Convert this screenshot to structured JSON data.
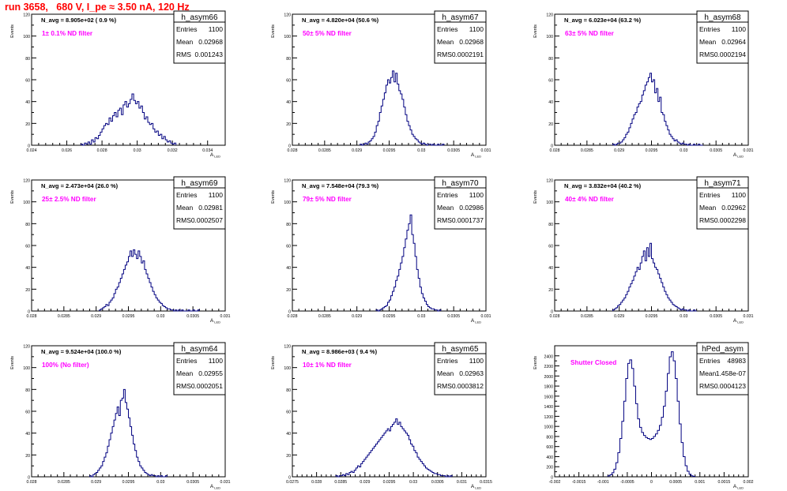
{
  "run_title": "run 3658,   680 V, I_pe ≈ 3.50 nA, 120 Hz",
  "colors": {
    "title": "#ff0000",
    "filter_text": "#ff00ff",
    "histogram": "#000080",
    "axis": "#000000"
  },
  "chart_data": [
    {
      "type": "histogram",
      "name": "h_asym66",
      "stats": {
        "entries_label": "Entries",
        "entries": "1100",
        "mean_label": "Mean",
        "mean": "0.02968",
        "rms_label": "RMS",
        "rms": "0.001243"
      },
      "navg": "N_avg = 8.905e+02 ( 0.9 %)",
      "filter": "1± 0.1% ND filter",
      "xlabel": "A_LED",
      "ylabel": "Events",
      "xlim": [
        0.024,
        0.035
      ],
      "ylim": [
        0,
        120
      ],
      "xticks": [
        0.024,
        0.026,
        0.028,
        0.03,
        0.032,
        0.034
      ],
      "xticklabels": [
        "0.024",
        "0.026",
        "0.028",
        "0.03",
        "0.032",
        "0.034"
      ],
      "yticks": [
        0,
        20,
        40,
        60,
        80,
        100,
        120
      ],
      "yticklabels": [
        "0",
        "20",
        "40",
        "60",
        "80",
        "100",
        "120"
      ],
      "bin_edges": [
        0.0268,
        0.0322
      ],
      "counts": [
        1,
        0,
        2,
        1,
        3,
        1,
        5,
        3,
        7,
        6,
        9,
        12,
        15,
        18,
        20,
        19,
        25,
        22,
        27,
        30,
        26,
        32,
        34,
        28,
        37,
        40,
        35,
        38,
        42,
        47,
        41,
        38,
        40,
        34,
        36,
        30,
        24,
        26,
        21,
        19,
        20,
        15,
        12,
        13,
        9,
        10,
        6,
        8,
        5,
        3,
        4,
        2,
        1,
        2
      ]
    },
    {
      "type": "histogram",
      "name": "h_asym67",
      "stats": {
        "entries_label": "Entries",
        "entries": "1100",
        "mean_label": "Mean",
        "mean": "0.02968",
        "rms_label": "RMS",
        "rms": "0.0002191"
      },
      "navg": "N_avg = 4.820e+04 (50.6 %)",
      "filter": "50± 5% ND filter",
      "xlabel": "A_LED",
      "ylabel": "Events",
      "xlim": [
        0.028,
        0.031
      ],
      "ylim": [
        0,
        120
      ],
      "xticks": [
        0.028,
        0.0285,
        0.029,
        0.0295,
        0.03,
        0.0305,
        0.031
      ],
      "xticklabels": [
        "0.028",
        "0.0285",
        "0.029",
        "0.0295",
        "0.03",
        "0.0305",
        "0.031"
      ],
      "yticks": [
        0,
        20,
        40,
        60,
        80,
        100,
        120
      ],
      "yticklabels": [
        "0",
        "20",
        "40",
        "60",
        "80",
        "100",
        "120"
      ],
      "bin_edges": [
        0.02905,
        0.03035
      ],
      "counts": [
        1,
        0,
        1,
        2,
        1,
        3,
        4,
        6,
        8,
        12,
        18,
        22,
        30,
        36,
        42,
        48,
        55,
        60,
        57,
        62,
        68,
        58,
        66,
        56,
        50,
        47,
        42,
        35,
        28,
        22,
        18,
        14,
        10,
        8,
        6,
        5,
        3,
        2,
        1,
        2,
        1,
        0,
        1,
        1,
        0,
        1,
        0,
        0,
        1,
        0,
        0,
        1
      ]
    },
    {
      "type": "histogram",
      "name": "h_asym68",
      "stats": {
        "entries_label": "Entries",
        "entries": "1100",
        "mean_label": "Mean",
        "mean": "0.02964",
        "rms_label": "RMS",
        "rms": "0.0002194"
      },
      "navg": "N_avg = 6.023e+04 (63.2 %)",
      "filter": "63± 5% ND filter",
      "xlabel": "A_LED",
      "ylabel": "Events",
      "xlim": [
        0.028,
        0.031
      ],
      "ylim": [
        0,
        120
      ],
      "xticks": [
        0.028,
        0.0285,
        0.029,
        0.0295,
        0.03,
        0.0305,
        0.031
      ],
      "xticklabels": [
        "0.028",
        "0.0285",
        "0.029",
        "0.0295",
        "0.03",
        "0.0305",
        "0.031"
      ],
      "yticks": [
        0,
        20,
        40,
        60,
        80,
        100,
        120
      ],
      "yticklabels": [
        "0",
        "20",
        "40",
        "60",
        "80",
        "100",
        "120"
      ],
      "bin_edges": [
        0.0289,
        0.0303
      ],
      "counts": [
        1,
        0,
        1,
        2,
        2,
        3,
        5,
        7,
        10,
        12,
        16,
        20,
        24,
        28,
        30,
        35,
        38,
        40,
        46,
        50,
        55,
        58,
        62,
        66,
        58,
        60,
        48,
        52,
        40,
        44,
        30,
        28,
        22,
        18,
        14,
        10,
        8,
        6,
        4,
        5,
        3,
        2,
        1,
        2,
        1,
        1,
        0,
        1,
        0,
        0,
        1,
        0,
        0,
        1,
        0,
        0
      ]
    },
    {
      "type": "histogram",
      "name": "h_asym69",
      "stats": {
        "entries_label": "Entries",
        "entries": "1100",
        "mean_label": "Mean",
        "mean": "0.02981",
        "rms_label": "RMS",
        "rms": "0.0002507"
      },
      "navg": "N_avg = 2.473e+04 (26.0 %)",
      "filter": "25± 2.5% ND filter",
      "xlabel": "A_LED",
      "ylabel": "Events",
      "xlim": [
        0.028,
        0.031
      ],
      "ylim": [
        0,
        120
      ],
      "xticks": [
        0.028,
        0.0285,
        0.029,
        0.0295,
        0.03,
        0.0305,
        0.031
      ],
      "xticklabels": [
        "0.028",
        "0.0285",
        "0.029",
        "0.0295",
        "0.03",
        "0.0305",
        "0.031"
      ],
      "yticks": [
        0,
        20,
        40,
        60,
        80,
        100,
        120
      ],
      "yticklabels": [
        "0",
        "20",
        "40",
        "60",
        "80",
        "100",
        "120"
      ],
      "bin_edges": [
        0.02905,
        0.0306
      ],
      "counts": [
        1,
        2,
        3,
        4,
        6,
        5,
        8,
        10,
        12,
        16,
        20,
        22,
        26,
        30,
        34,
        38,
        42,
        45,
        50,
        55,
        50,
        56,
        52,
        48,
        55,
        50,
        44,
        46,
        38,
        34,
        30,
        26,
        22,
        18,
        15,
        12,
        10,
        8,
        7,
        5,
        4,
        3,
        2,
        2,
        1,
        1,
        0,
        1,
        0,
        1,
        0,
        1,
        0,
        0,
        0,
        1,
        0,
        0,
        1,
        0,
        0,
        1
      ]
    },
    {
      "type": "histogram",
      "name": "h_asym70",
      "stats": {
        "entries_label": "Entries",
        "entries": "1100",
        "mean_label": "Mean",
        "mean": "0.02986",
        "rms_label": "RMS",
        "rms": "0.0001737"
      },
      "navg": "N_avg = 7.548e+04 (79.3 %)",
      "filter": "79± 5% ND filter",
      "xlabel": "A_LED",
      "ylabel": "Events",
      "xlim": [
        0.028,
        0.031
      ],
      "ylim": [
        0,
        120
      ],
      "xticks": [
        0.028,
        0.0285,
        0.029,
        0.0295,
        0.03,
        0.0305,
        0.031
      ],
      "xticklabels": [
        "0.028",
        "0.0285",
        "0.029",
        "0.0295",
        "0.03",
        "0.0305",
        "0.031"
      ],
      "yticks": [
        0,
        20,
        40,
        60,
        80,
        100,
        120
      ],
      "yticklabels": [
        "0",
        "20",
        "40",
        "60",
        "80",
        "100",
        "120"
      ],
      "bin_edges": [
        0.0293,
        0.0303
      ],
      "counts": [
        1,
        0,
        1,
        2,
        3,
        4,
        5,
        8,
        10,
        14,
        18,
        22,
        28,
        32,
        38,
        44,
        50,
        58,
        66,
        74,
        80,
        88,
        70,
        62,
        50,
        38,
        30,
        22,
        16,
        12,
        9,
        6,
        4,
        3,
        2,
        2,
        1,
        1,
        0,
        1
      ]
    },
    {
      "type": "histogram",
      "name": "h_asym71",
      "stats": {
        "entries_label": "Entries",
        "entries": "1100",
        "mean_label": "Mean",
        "mean": "0.02962",
        "rms_label": "RMS",
        "rms": "0.0002298"
      },
      "navg": "N_avg = 3.832e+04 (40.2 %)",
      "filter": "40± 4% ND filter",
      "xlabel": "A_LED",
      "ylabel": "Events",
      "xlim": [
        0.028,
        0.031
      ],
      "ylim": [
        0,
        120
      ],
      "xticks": [
        0.028,
        0.0285,
        0.029,
        0.0295,
        0.03,
        0.0305,
        0.031
      ],
      "xticklabels": [
        "0.028",
        "0.0285",
        "0.029",
        "0.0295",
        "0.03",
        "0.0305",
        "0.031"
      ],
      "yticks": [
        0,
        20,
        40,
        60,
        80,
        100,
        120
      ],
      "yticklabels": [
        "0",
        "20",
        "40",
        "60",
        "80",
        "100",
        "120"
      ],
      "bin_edges": [
        0.0289,
        0.0302
      ],
      "counts": [
        1,
        2,
        3,
        5,
        6,
        8,
        10,
        12,
        15,
        18,
        22,
        25,
        28,
        32,
        36,
        40,
        38,
        44,
        50,
        55,
        46,
        58,
        50,
        62,
        48,
        44,
        40,
        38,
        34,
        30,
        26,
        22,
        18,
        15,
        12,
        10,
        8,
        6,
        5,
        4,
        3,
        2,
        1,
        2,
        1,
        1,
        0,
        1,
        0,
        0,
        1,
        0
      ]
    },
    {
      "type": "histogram",
      "name": "h_asym64",
      "stats": {
        "entries_label": "Entries",
        "entries": "1100",
        "mean_label": "Mean",
        "mean": "0.02955",
        "rms_label": "RMS",
        "rms": "0.0002051"
      },
      "navg": "N_avg = 9.524e+04 (100.0 %)",
      "filter": "100% (No filter)",
      "xlabel": "A_LED",
      "ylabel": "Events",
      "xlim": [
        0.028,
        0.031
      ],
      "ylim": [
        0,
        120
      ],
      "xticks": [
        0.028,
        0.0285,
        0.029,
        0.0295,
        0.03,
        0.0305,
        0.031
      ],
      "xticklabels": [
        "0.028",
        "0.0285",
        "0.029",
        "0.0295",
        "0.03",
        "0.0305",
        "0.031"
      ],
      "yticks": [
        0,
        20,
        40,
        60,
        80,
        100,
        120
      ],
      "yticklabels": [
        "0",
        "20",
        "40",
        "60",
        "80",
        "100",
        "120"
      ],
      "bin_edges": [
        0.0289,
        0.0301
      ],
      "counts": [
        1,
        0,
        2,
        3,
        4,
        6,
        8,
        10,
        14,
        18,
        22,
        28,
        34,
        40,
        46,
        52,
        58,
        64,
        56,
        70,
        72,
        80,
        68,
        62,
        54,
        46,
        38,
        30,
        24,
        18,
        14,
        10,
        8,
        6,
        4,
        3,
        2,
        1,
        2,
        1,
        1,
        0,
        1,
        0,
        1,
        0,
        0,
        1
      ]
    },
    {
      "type": "histogram",
      "name": "h_asym65",
      "stats": {
        "entries_label": "Entries",
        "entries": "1100",
        "mean_label": "Mean",
        "mean": "0.02963",
        "rms_label": "RMS",
        "rms": "0.0003812"
      },
      "navg": "N_avg = 8.986e+03 ( 9.4 %)",
      "filter": "10± 1% ND filter",
      "xlabel": "A_LED",
      "ylabel": "Events",
      "xlim": [
        0.0275,
        0.0315
      ],
      "ylim": [
        0,
        120
      ],
      "xticks": [
        0.0275,
        0.028,
        0.0285,
        0.029,
        0.0295,
        0.03,
        0.0305,
        0.031,
        0.0315
      ],
      "xticklabels": [
        "0.0275",
        "0.028",
        "0.0285",
        "0.029",
        "0.0295",
        "0.03",
        "0.0305",
        "0.031",
        "0.0315"
      ],
      "yticks": [
        0,
        20,
        40,
        60,
        80,
        100,
        120
      ],
      "yticklabels": [
        "0",
        "20",
        "40",
        "60",
        "80",
        "100",
        "120"
      ],
      "bin_edges": [
        0.0284,
        0.0308
      ],
      "counts": [
        1,
        0,
        1,
        1,
        2,
        1,
        3,
        2,
        4,
        5,
        4,
        6,
        8,
        10,
        9,
        12,
        14,
        16,
        18,
        20,
        22,
        24,
        26,
        28,
        30,
        32,
        34,
        36,
        38,
        40,
        42,
        44,
        42,
        46,
        48,
        50,
        53,
        48,
        50,
        46,
        44,
        42,
        40,
        38,
        34,
        30,
        28,
        24,
        22,
        18,
        16,
        14,
        12,
        10,
        8,
        7,
        6,
        5,
        4,
        3,
        3,
        2,
        2,
        1,
        1,
        1,
        0,
        1,
        0,
        1
      ]
    },
    {
      "type": "histogram",
      "name": "hPed_asym",
      "stats": {
        "entries_label": "Entries",
        "entries": "48983",
        "mean_label": "Mean",
        "mean": "1.458e-07",
        "rms_label": "RMS",
        "rms": "0.0004123"
      },
      "navg": "",
      "filter": "Shutter Closed",
      "xlabel": "A_LED",
      "ylabel": "Events",
      "xlim": [
        -0.002,
        0.002
      ],
      "ylim": [
        0,
        2600
      ],
      "xticks": [
        -0.002,
        -0.0015,
        -0.001,
        -0.0005,
        0,
        0.0005,
        0.001,
        0.0015,
        0.002
      ],
      "xticklabels": [
        "-0.002",
        "-0.0015",
        "-0.001",
        "-0.0005",
        "0",
        "0.0005",
        "0.001",
        "0.0015",
        "0.002"
      ],
      "yticks": [
        0,
        200,
        400,
        600,
        800,
        1000,
        1200,
        1400,
        1600,
        1800,
        2000,
        2200,
        2400
      ],
      "yticklabels": [
        "0",
        "200",
        "400",
        "600",
        "800",
        "1000",
        "1200",
        "1400",
        "1600",
        "1800",
        "2000",
        "2200",
        "2400"
      ],
      "bin_edges": [
        -0.0009,
        0.0009
      ],
      "counts": [
        20,
        40,
        80,
        150,
        280,
        480,
        760,
        1100,
        1500,
        1950,
        2250,
        2320,
        2150,
        1800,
        1450,
        1150,
        980,
        880,
        820,
        780,
        760,
        740,
        760,
        800,
        850,
        920,
        1020,
        1180,
        1400,
        1700,
        2050,
        2380,
        2480,
        2300,
        1950,
        1500,
        1050,
        680,
        400,
        220,
        110,
        50,
        20,
        8
      ]
    }
  ]
}
